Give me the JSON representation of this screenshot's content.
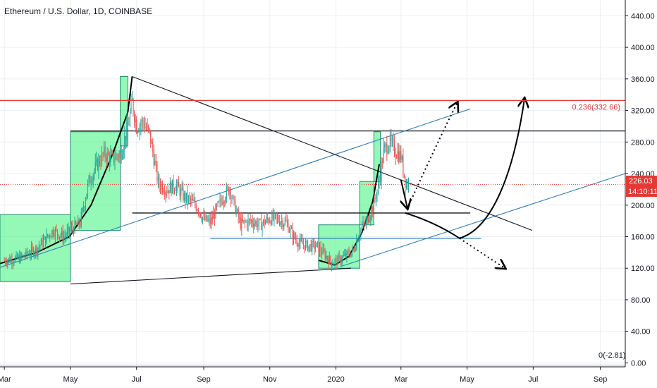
{
  "header": {
    "title": "Ethereum / U.S. Dollar, 1D, COINBASE"
  },
  "colors": {
    "up": "#26a69a",
    "down": "#ef5350",
    "grid": "#eceff2",
    "axis_line": "#131722",
    "fib_line": "#e53935",
    "price_line": "#e53935",
    "trend_blue": "#2f7fb8",
    "box_fill": "#3df27a",
    "box_stroke": "#1e8e6e"
  },
  "chart_data": {
    "type": "candlestick",
    "title": "Ethereum / U.S. Dollar, 1D, COINBASE",
    "xlabel": "",
    "ylabel": "",
    "ylim": [
      -5,
      460
    ],
    "y_ticks": [
      "0.00",
      "40.00",
      "80.00",
      "120.00",
      "160.00",
      "200.00",
      "240.00",
      "280.00",
      "320.00",
      "360.00",
      "400.00",
      "440.00"
    ],
    "y_tick_values": [
      0,
      40,
      80,
      120,
      160,
      200,
      240,
      280,
      320,
      360,
      400,
      440
    ],
    "x_tick_labels": [
      "Mar",
      "May",
      "Jul",
      "Sep",
      "Nov",
      "2020",
      "Mar",
      "May",
      "Jul",
      "Sep"
    ],
    "x_tick_days": [
      0,
      61,
      122,
      184,
      245,
      306,
      366,
      427,
      488,
      550
    ],
    "x_domain_days": [
      -4,
      573
    ],
    "x_origin": "2019-03-01",
    "price_path": [
      [
        0,
        130
      ],
      [
        15,
        133
      ],
      [
        30,
        145
      ],
      [
        45,
        168
      ],
      [
        55,
        160
      ],
      [
        61,
        168
      ],
      [
        70,
        178
      ],
      [
        78,
        230
      ],
      [
        85,
        250
      ],
      [
        92,
        265
      ],
      [
        100,
        258
      ],
      [
        108,
        268
      ],
      [
        114,
        300
      ],
      [
        118,
        330
      ],
      [
        122,
        300
      ],
      [
        128,
        305
      ],
      [
        134,
        290
      ],
      [
        138,
        260
      ],
      [
        142,
        228
      ],
      [
        150,
        220
      ],
      [
        158,
        226
      ],
      [
        166,
        210
      ],
      [
        172,
        205
      ],
      [
        178,
        198
      ],
      [
        184,
        182
      ],
      [
        190,
        178
      ],
      [
        196,
        195
      ],
      [
        202,
        210
      ],
      [
        208,
        222
      ],
      [
        212,
        200
      ],
      [
        218,
        176
      ],
      [
        228,
        180
      ],
      [
        236,
        175
      ],
      [
        245,
        183
      ],
      [
        252,
        182
      ],
      [
        260,
        178
      ],
      [
        266,
        162
      ],
      [
        272,
        152
      ],
      [
        280,
        148
      ],
      [
        288,
        148
      ],
      [
        295,
        138
      ],
      [
        302,
        127
      ],
      [
        308,
        130
      ],
      [
        314,
        135
      ],
      [
        322,
        142
      ],
      [
        328,
        168
      ],
      [
        334,
        178
      ],
      [
        340,
        198
      ],
      [
        346,
        230
      ],
      [
        350,
        268
      ],
      [
        355,
        280
      ],
      [
        360,
        270
      ],
      [
        366,
        262
      ],
      [
        370,
        230
      ],
      [
        373,
        226
      ]
    ],
    "last_price": "226.03",
    "last_price_value": 226.03,
    "countdown": "14:10:11",
    "fib_label": "0.236(332.66)",
    "fib_value": 332.66,
    "bottom_label": "0(-2.81)",
    "bottom_value": -2.81,
    "horizontal_levels": [
      {
        "from_day": 61,
        "to_day": 573,
        "value": 294,
        "color": "#131722"
      },
      {
        "from_day": 118,
        "to_day": 430,
        "value": 190,
        "color": "#131722"
      },
      {
        "from_day": 190,
        "to_day": 440,
        "value": 158,
        "color": "#2f7fb8"
      }
    ],
    "trend_lines": [
      {
        "from": [
          -4,
          121
        ],
        "to": [
          430,
          322
        ],
        "color": "#2f7fb8"
      },
      {
        "from": [
          310,
          122
        ],
        "to": [
          573,
          240
        ],
        "color": "#2f7fb8"
      },
      {
        "from": [
          61,
          100
        ],
        "to": [
          320,
          120
        ],
        "color": "#131722"
      },
      {
        "from": [
          118,
          363
        ],
        "to": [
          487,
          168
        ],
        "color": "#131722"
      }
    ],
    "boxes": [
      {
        "d0": -4,
        "d1": 61,
        "lo": 103,
        "hi": 188
      },
      {
        "d0": 61,
        "d1": 107,
        "lo": 168,
        "hi": 293
      },
      {
        "d0": 107,
        "d1": 114,
        "lo": 275,
        "hi": 363
      },
      {
        "d0": 290,
        "d1": 328,
        "lo": 120,
        "hi": 175
      },
      {
        "d0": 328,
        "d1": 341,
        "lo": 175,
        "hi": 230
      },
      {
        "d0": 341,
        "d1": 347,
        "lo": 230,
        "hi": 293
      }
    ],
    "projections": [
      {
        "kind": "solid-arrow",
        "points": [
          [
            366,
            232
          ],
          [
            372,
            196
          ]
        ]
      },
      {
        "kind": "dotted-arrow",
        "points": [
          [
            372,
            196
          ],
          [
            398,
            275
          ],
          [
            418,
            330
          ]
        ]
      },
      {
        "kind": "solid",
        "points": [
          [
            370,
            190
          ],
          [
            398,
            178
          ],
          [
            420,
            158
          ]
        ]
      },
      {
        "kind": "dotted-arrow",
        "points": [
          [
            420,
            158
          ],
          [
            445,
            135
          ],
          [
            462,
            120
          ]
        ]
      },
      {
        "kind": "solid-arrow",
        "points": [
          [
            420,
            158
          ],
          [
            450,
            170
          ],
          [
            470,
            240
          ],
          [
            480,
            335
          ]
        ]
      }
    ]
  }
}
